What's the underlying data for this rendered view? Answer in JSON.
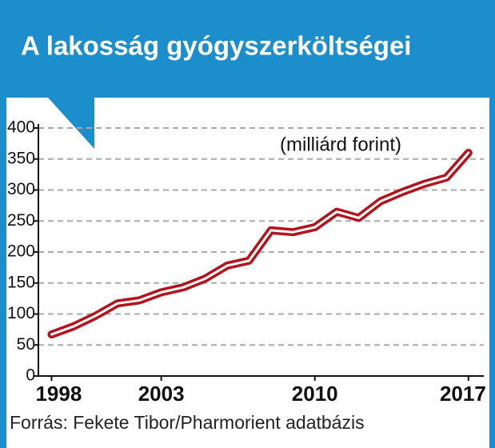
{
  "chart_data": {
    "type": "line",
    "title": "A lakosság gyógyszerköltségei",
    "annotation": "(milliárd forint)",
    "source": "Forrás: Fekete Tibor/Pharmorient adatbázis",
    "x": [
      1998,
      1999,
      2000,
      2001,
      2002,
      2003,
      2004,
      2005,
      2006,
      2007,
      2008,
      2009,
      2010,
      2011,
      2012,
      2013,
      2014,
      2015,
      2016,
      2017
    ],
    "series": [
      {
        "name": "Gyógyszerköltség",
        "color": "#b5121b",
        "values": [
          67,
          80,
          97,
          117,
          122,
          135,
          143,
          157,
          178,
          186,
          235,
          232,
          240,
          265,
          255,
          282,
          297,
          310,
          320,
          360
        ]
      }
    ],
    "xlim": [
      1997.4,
      2017.7
    ],
    "xticks": [
      1998,
      2003,
      2010,
      2017
    ],
    "ylim": [
      0,
      400
    ],
    "yticks": [
      0,
      50,
      100,
      150,
      200,
      250,
      300,
      350,
      400
    ],
    "grid": true
  }
}
